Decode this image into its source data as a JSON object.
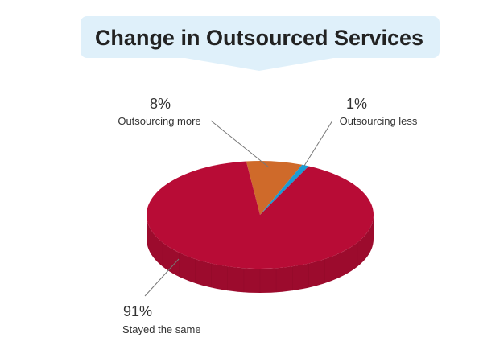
{
  "chart_data": {
    "type": "pie",
    "title": "Change in Outsourced Services",
    "slices": [
      {
        "label": "Outsourcing more",
        "value": 8,
        "value_label": "8%",
        "color": "#cf6a2a"
      },
      {
        "label": "Outsourcing less",
        "value": 1,
        "value_label": "1%",
        "color": "#1b9bd3"
      },
      {
        "label": "Stayed the same",
        "value": 91,
        "value_label": "91%",
        "color": "#b80c36"
      }
    ],
    "style": "3d",
    "side_color": "#9c0b2d",
    "banner_color": "#dff0fa"
  }
}
